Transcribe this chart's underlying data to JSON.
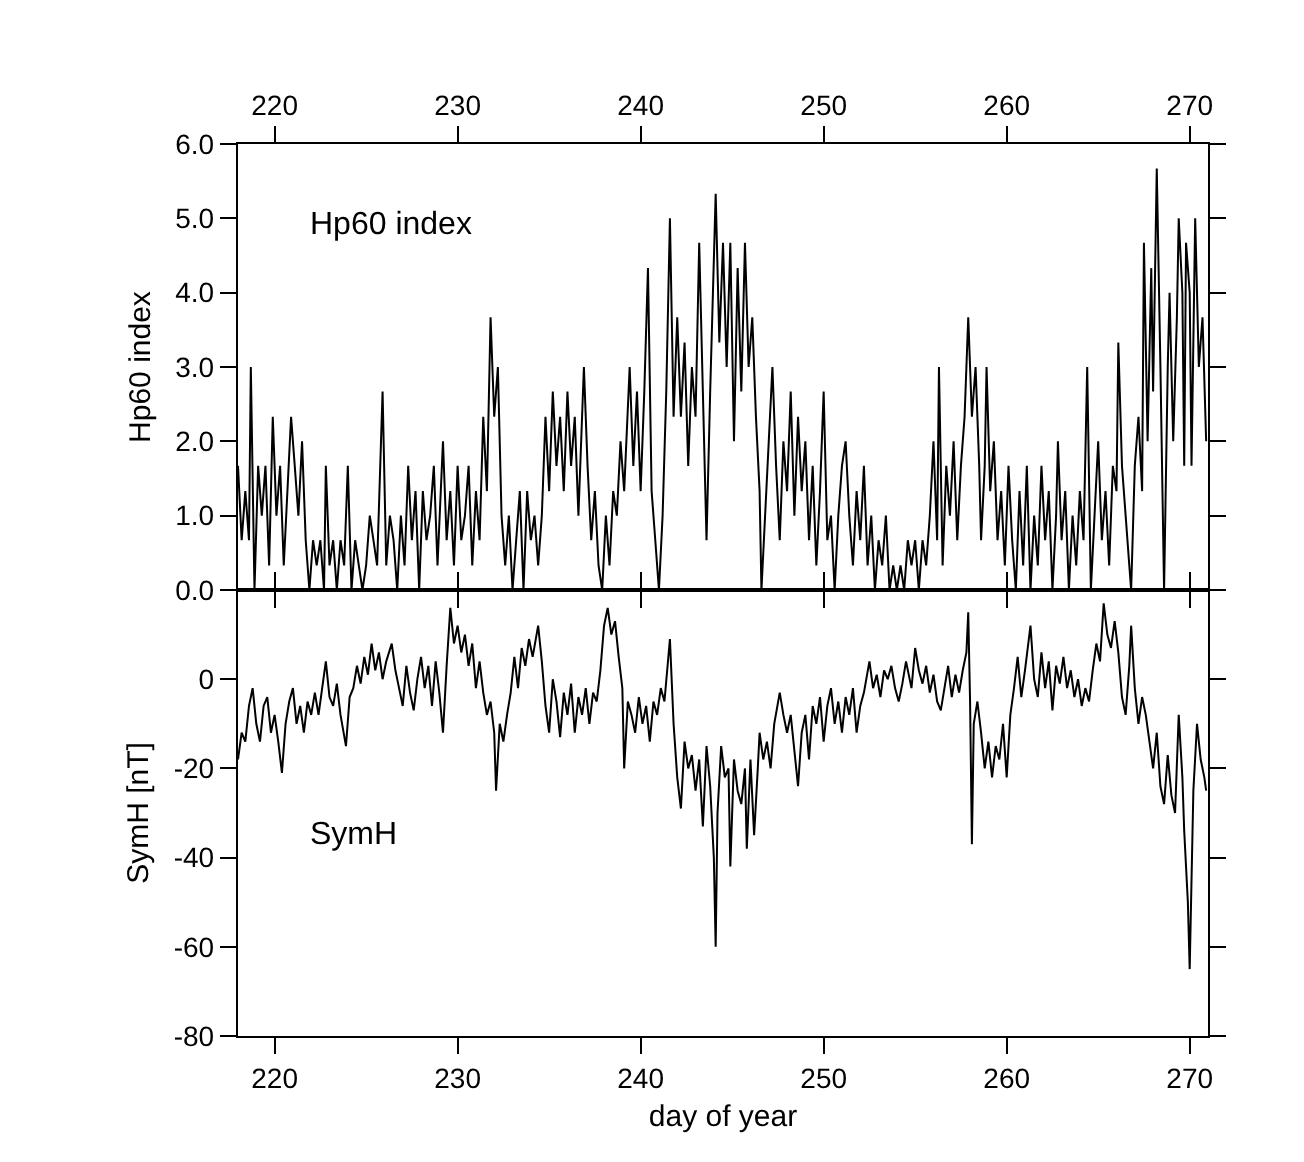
{
  "chart_data": [
    {
      "type": "line",
      "ylabel": "Hp60 index",
      "annotations": [
        "Hp60 index"
      ],
      "xlim": [
        218,
        271
      ],
      "xticks": [
        220,
        230,
        240,
        250,
        260,
        270
      ],
      "ylim": [
        0,
        6
      ],
      "yticks": [
        {
          "value": 0,
          "label": "0.0"
        },
        {
          "value": 1,
          "label": "1.0"
        },
        {
          "value": 2,
          "label": "2.0"
        },
        {
          "value": 3,
          "label": "3.0"
        },
        {
          "value": 4,
          "label": "4.0"
        },
        {
          "value": 5,
          "label": "5.0"
        },
        {
          "value": 6,
          "label": "6.0"
        }
      ],
      "grid": false,
      "marker": "none",
      "line_style": "solid",
      "series": [
        {
          "color": "#000000",
          "x": [
            218.0,
            218.2,
            218.4,
            218.6,
            218.7,
            218.9,
            219.1,
            219.3,
            219.5,
            219.7,
            219.9,
            220.1,
            220.3,
            220.5,
            220.7,
            220.9,
            221.1,
            221.3,
            221.5,
            221.7,
            221.9,
            222.1,
            222.3,
            222.5,
            222.7,
            222.8,
            223.0,
            223.2,
            223.4,
            223.6,
            223.8,
            224.0,
            224.2,
            224.4,
            224.6,
            224.8,
            225.0,
            225.2,
            225.4,
            225.6,
            225.9,
            226.1,
            226.3,
            226.5,
            226.7,
            226.9,
            227.1,
            227.3,
            227.5,
            227.7,
            227.9,
            228.1,
            228.3,
            228.5,
            228.7,
            228.9,
            229.2,
            229.4,
            229.6,
            229.8,
            230.0,
            230.2,
            230.4,
            230.6,
            230.8,
            231.0,
            231.2,
            231.4,
            231.6,
            231.8,
            232.0,
            232.2,
            232.4,
            232.6,
            232.8,
            233.0,
            233.2,
            233.4,
            233.6,
            233.8,
            234.0,
            234.2,
            234.4,
            234.6,
            234.8,
            235.0,
            235.2,
            235.4,
            235.6,
            235.8,
            236.0,
            236.2,
            236.4,
            236.6,
            236.9,
            237.1,
            237.3,
            237.5,
            237.7,
            237.9,
            238.1,
            238.3,
            238.5,
            238.7,
            238.9,
            239.1,
            239.4,
            239.6,
            239.8,
            240.0,
            240.2,
            240.4,
            240.6,
            240.8,
            241.0,
            241.2,
            241.4,
            241.6,
            241.8,
            242.0,
            242.2,
            242.4,
            242.6,
            242.8,
            243.0,
            243.2,
            243.4,
            243.6,
            243.8,
            244.1,
            244.3,
            244.5,
            244.7,
            244.9,
            245.1,
            245.3,
            245.5,
            245.7,
            245.9,
            246.1,
            246.3,
            246.5,
            246.6,
            246.8,
            247.0,
            247.2,
            247.4,
            247.6,
            247.8,
            248.0,
            248.2,
            248.4,
            248.6,
            248.8,
            249.0,
            249.2,
            249.4,
            249.6,
            249.8,
            250.0,
            250.2,
            250.4,
            250.6,
            250.8,
            251.0,
            251.2,
            251.4,
            251.6,
            251.8,
            252.0,
            252.2,
            252.4,
            252.6,
            252.8,
            253.0,
            253.2,
            253.4,
            253.6,
            253.8,
            254.0,
            254.2,
            254.4,
            254.6,
            254.8,
            255.0,
            255.2,
            255.4,
            255.6,
            255.8,
            256.0,
            256.2,
            256.3,
            256.5,
            256.7,
            256.9,
            257.1,
            257.3,
            257.5,
            257.7,
            257.9,
            258.1,
            258.3,
            258.5,
            258.6,
            258.8,
            258.9,
            259.1,
            259.3,
            259.5,
            259.7,
            259.9,
            260.1,
            260.3,
            260.5,
            260.7,
            260.9,
            261.1,
            261.3,
            261.5,
            261.7,
            261.9,
            262.1,
            262.3,
            262.5,
            262.7,
            262.8,
            263.0,
            263.2,
            263.4,
            263.6,
            263.8,
            264.0,
            264.2,
            264.4,
            264.6,
            264.8,
            265.0,
            265.2,
            265.4,
            265.6,
            265.8,
            266.0,
            266.1,
            266.3,
            266.5,
            266.7,
            266.8,
            267.0,
            267.2,
            267.4,
            267.5,
            267.7,
            267.9,
            268.0,
            268.2,
            268.4,
            268.6,
            268.8,
            268.9,
            269.1,
            269.3,
            269.4,
            269.6,
            269.7,
            269.8,
            270.0,
            270.1,
            270.3,
            270.5,
            270.7,
            270.9
          ],
          "values": [
            1.67,
            0.67,
            1.33,
            0.67,
            3.0,
            0.0,
            1.67,
            1.0,
            1.67,
            0.33,
            2.33,
            1.0,
            1.67,
            0.33,
            1.33,
            2.33,
            1.67,
            1.0,
            2.0,
            0.67,
            0.0,
            0.67,
            0.33,
            0.67,
            0.0,
            1.67,
            0.33,
            0.67,
            0.0,
            0.67,
            0.33,
            1.67,
            0.0,
            0.67,
            0.33,
            0.0,
            0.33,
            1.0,
            0.67,
            0.33,
            2.67,
            0.33,
            1.0,
            0.67,
            0.0,
            1.0,
            0.33,
            1.67,
            0.67,
            1.33,
            0.0,
            1.33,
            0.67,
            1.0,
            1.67,
            0.33,
            2.0,
            0.67,
            1.33,
            0.33,
            1.67,
            0.67,
            1.0,
            1.67,
            0.33,
            1.33,
            0.67,
            2.33,
            1.33,
            3.67,
            2.33,
            3.0,
            1.0,
            0.33,
            1.0,
            0.0,
            0.67,
            1.33,
            0.0,
            1.33,
            0.67,
            1.0,
            0.33,
            1.0,
            2.33,
            1.33,
            2.67,
            1.67,
            2.33,
            1.33,
            2.67,
            1.67,
            2.33,
            1.0,
            3.0,
            1.67,
            0.67,
            1.33,
            0.33,
            0.0,
            1.0,
            0.33,
            1.33,
            1.0,
            2.0,
            1.33,
            3.0,
            1.67,
            2.67,
            1.33,
            2.67,
            4.33,
            1.33,
            0.67,
            0.0,
            1.0,
            2.67,
            5.0,
            2.33,
            3.67,
            2.33,
            3.33,
            1.67,
            3.0,
            2.33,
            4.67,
            2.67,
            0.67,
            2.67,
            5.33,
            3.33,
            4.67,
            3.0,
            4.67,
            2.0,
            4.33,
            2.67,
            4.67,
            3.0,
            3.67,
            2.33,
            1.33,
            0.0,
            1.0,
            2.0,
            3.0,
            1.67,
            0.67,
            2.0,
            1.33,
            2.67,
            1.0,
            2.33,
            1.33,
            2.0,
            0.67,
            1.67,
            0.33,
            1.33,
            2.67,
            0.67,
            1.0,
            0.0,
            1.0,
            1.67,
            2.0,
            1.0,
            0.33,
            1.33,
            0.67,
            1.67,
            0.33,
            1.0,
            0.0,
            0.67,
            0.33,
            1.0,
            0.0,
            0.33,
            0.0,
            0.33,
            0.0,
            0.67,
            0.33,
            0.67,
            0.0,
            0.67,
            0.33,
            1.0,
            2.0,
            0.67,
            3.0,
            0.33,
            1.67,
            1.0,
            2.0,
            0.67,
            1.67,
            2.33,
            3.67,
            2.33,
            3.0,
            1.67,
            0.67,
            1.67,
            3.0,
            1.33,
            2.0,
            0.67,
            1.33,
            0.33,
            1.67,
            0.67,
            0.0,
            1.33,
            0.33,
            1.67,
            0.0,
            1.0,
            0.33,
            1.67,
            0.67,
            1.33,
            0.0,
            1.0,
            2.0,
            0.67,
            1.33,
            0.0,
            1.0,
            0.33,
            1.33,
            0.67,
            3.0,
            0.0,
            1.0,
            2.0,
            0.67,
            1.33,
            0.33,
            1.67,
            1.33,
            3.33,
            1.67,
            1.0,
            0.33,
            0.0,
            1.67,
            2.33,
            1.33,
            4.67,
            2.0,
            4.33,
            2.67,
            5.67,
            3.0,
            0.0,
            3.0,
            4.0,
            2.0,
            3.67,
            5.0,
            4.0,
            1.67,
            4.67,
            4.0,
            1.67,
            5.0,
            3.0,
            3.67,
            2.0
          ]
        }
      ]
    },
    {
      "type": "line",
      "ylabel": "SymH [nT]",
      "xlabel": "day of year",
      "annotations": [
        "SymH"
      ],
      "xlim": [
        218,
        271
      ],
      "xticks": [
        220,
        230,
        240,
        250,
        260,
        270
      ],
      "ylim": [
        -80,
        20
      ],
      "yticks": [
        -80,
        -60,
        -40,
        -20,
        0,
        {
          "value": 20,
          "label": null
        }
      ],
      "grid": false,
      "marker": "none",
      "line_style": "solid",
      "series": [
        {
          "color": "#000000",
          "x": [
            218.0,
            218.2,
            218.4,
            218.6,
            218.8,
            219.0,
            219.2,
            219.4,
            219.6,
            219.8,
            220.0,
            220.2,
            220.4,
            220.6,
            220.8,
            221.0,
            221.2,
            221.4,
            221.6,
            221.8,
            222.0,
            222.2,
            222.4,
            222.6,
            222.8,
            223.0,
            223.2,
            223.4,
            223.6,
            223.9,
            224.1,
            224.3,
            224.5,
            224.7,
            224.9,
            225.1,
            225.3,
            225.5,
            225.7,
            225.9,
            226.1,
            226.4,
            226.6,
            226.8,
            227.0,
            227.2,
            227.4,
            227.6,
            227.8,
            228.0,
            228.2,
            228.4,
            228.6,
            228.8,
            229.0,
            229.2,
            229.4,
            229.6,
            229.8,
            230.0,
            230.2,
            230.4,
            230.6,
            230.8,
            231.0,
            231.2,
            231.4,
            231.6,
            231.8,
            232.0,
            232.1,
            232.3,
            232.5,
            232.7,
            232.9,
            233.1,
            233.3,
            233.5,
            233.7,
            233.9,
            234.1,
            234.4,
            234.6,
            234.8,
            235.0,
            235.2,
            235.4,
            235.6,
            235.8,
            236.0,
            236.2,
            236.4,
            236.6,
            236.8,
            237.0,
            237.2,
            237.4,
            237.6,
            237.8,
            238.0,
            238.2,
            238.4,
            238.6,
            238.8,
            239.0,
            239.1,
            239.3,
            239.5,
            239.7,
            239.9,
            240.1,
            240.3,
            240.5,
            240.7,
            240.9,
            241.1,
            241.3,
            241.6,
            241.8,
            242.0,
            242.2,
            242.4,
            242.6,
            242.8,
            243.0,
            243.2,
            243.4,
            243.6,
            243.8,
            244.0,
            244.1,
            244.2,
            244.4,
            244.6,
            244.8,
            244.9,
            245.1,
            245.3,
            245.5,
            245.7,
            245.8,
            246.0,
            246.2,
            246.4,
            246.5,
            246.7,
            246.9,
            247.1,
            247.3,
            247.6,
            247.8,
            248.0,
            248.2,
            248.4,
            248.6,
            248.8,
            249.0,
            249.2,
            249.4,
            249.6,
            249.8,
            250.0,
            250.2,
            250.4,
            250.6,
            250.8,
            251.0,
            251.2,
            251.4,
            251.6,
            251.8,
            252.0,
            252.2,
            252.5,
            252.7,
            252.9,
            253.1,
            253.3,
            253.5,
            253.7,
            253.9,
            254.1,
            254.3,
            254.5,
            254.8,
            255.0,
            255.2,
            255.4,
            255.6,
            255.8,
            256.0,
            256.2,
            256.4,
            256.6,
            256.8,
            257.0,
            257.2,
            257.4,
            257.6,
            257.8,
            257.9,
            258.0,
            258.1,
            258.2,
            258.4,
            258.6,
            258.8,
            259.0,
            259.2,
            259.4,
            259.6,
            259.8,
            260.0,
            260.2,
            260.4,
            260.6,
            260.8,
            261.0,
            261.3,
            261.5,
            261.7,
            261.9,
            262.1,
            262.3,
            262.5,
            262.7,
            262.9,
            263.1,
            263.3,
            263.5,
            263.7,
            263.9,
            264.1,
            264.3,
            264.5,
            264.7,
            264.9,
            265.1,
            265.3,
            265.5,
            265.7,
            265.9,
            266.1,
            266.3,
            266.5,
            266.7,
            266.8,
            267.0,
            267.2,
            267.4,
            267.6,
            267.8,
            268.0,
            268.2,
            268.4,
            268.6,
            268.8,
            269.0,
            269.2,
            269.4,
            269.6,
            269.7,
            269.9,
            270.0,
            270.1,
            270.2,
            270.4,
            270.6,
            270.8,
            270.9
          ],
          "values": [
            -18,
            -12,
            -14,
            -6,
            -2,
            -10,
            -14,
            -6,
            -4,
            -12,
            -8,
            -14,
            -21,
            -10,
            -5,
            -2,
            -10,
            -6,
            -12,
            -5,
            -8,
            -3,
            -8,
            -2,
            4,
            -4,
            -6,
            -1,
            -8,
            -15,
            -4,
            -2,
            3,
            -1,
            5,
            1,
            8,
            2,
            6,
            0,
            4,
            8,
            2,
            -2,
            -6,
            3,
            -3,
            -7,
            0,
            5,
            -2,
            3,
            -6,
            4,
            -3,
            -12,
            3,
            16,
            8,
            12,
            6,
            10,
            3,
            8,
            -2,
            4,
            -3,
            -8,
            -5,
            -12,
            -25,
            -10,
            -14,
            -8,
            -3,
            5,
            -2,
            7,
            3,
            9,
            5,
            12,
            4,
            -6,
            -12,
            0,
            -5,
            -13,
            -3,
            -8,
            -1,
            -12,
            -4,
            -8,
            -2,
            -10,
            -3,
            -5,
            2,
            12,
            16,
            10,
            13,
            5,
            -2,
            -20,
            -5,
            -8,
            -12,
            -4,
            -10,
            -6,
            -14,
            -5,
            -8,
            -2,
            -5,
            9,
            -10,
            -22,
            -29,
            -14,
            -20,
            -17,
            -25,
            -18,
            -33,
            -15,
            -24,
            -40,
            -60,
            -30,
            -15,
            -22,
            -20,
            -42,
            -18,
            -25,
            -28,
            -20,
            -38,
            -18,
            -35,
            -20,
            -12,
            -18,
            -14,
            -20,
            -10,
            -3,
            -8,
            -12,
            -8,
            -16,
            -24,
            -12,
            -8,
            -18,
            -6,
            -10,
            -4,
            -14,
            -6,
            -2,
            -10,
            -5,
            -12,
            -4,
            -8,
            -2,
            -12,
            -6,
            -3,
            4,
            -2,
            1,
            -4,
            2,
            0,
            3,
            -2,
            -5,
            -1,
            4,
            -2,
            7,
            2,
            -1,
            3,
            -3,
            1,
            -5,
            -7,
            -2,
            3,
            -4,
            1,
            -3,
            2,
            6,
            15,
            -5,
            -37,
            -10,
            -5,
            -12,
            -20,
            -14,
            -22,
            -15,
            -18,
            -10,
            -22,
            -8,
            -2,
            5,
            -4,
            2,
            12,
            0,
            -4,
            6,
            -2,
            4,
            -7,
            3,
            -1,
            5,
            -2,
            2,
            -4,
            0,
            -6,
            -2,
            -5,
            2,
            8,
            4,
            17,
            10,
            7,
            13,
            6,
            -4,
            -8,
            3,
            12,
            -2,
            -10,
            -4,
            -8,
            -14,
            -20,
            -12,
            -24,
            -28,
            -17,
            -26,
            -30,
            -8,
            -22,
            -34,
            -50,
            -65,
            -45,
            -25,
            -10,
            -18,
            -22,
            -25
          ]
        }
      ]
    }
  ]
}
